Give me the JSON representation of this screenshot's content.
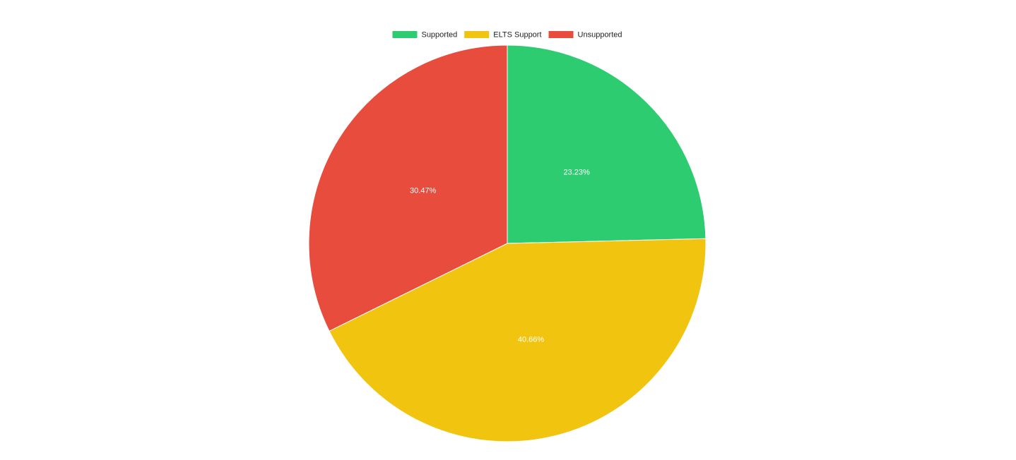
{
  "chart_data": {
    "type": "pie",
    "categories": [
      "Supported",
      "ELTS Support",
      "Unsupported"
    ],
    "values": [
      23.23,
      40.66,
      30.47
    ],
    "value_labels": [
      "23.23%",
      "40.66%",
      "30.47%"
    ],
    "colors": [
      "#2ecc71",
      "#f1c40f",
      "#e74c3c"
    ],
    "legend": "top"
  }
}
